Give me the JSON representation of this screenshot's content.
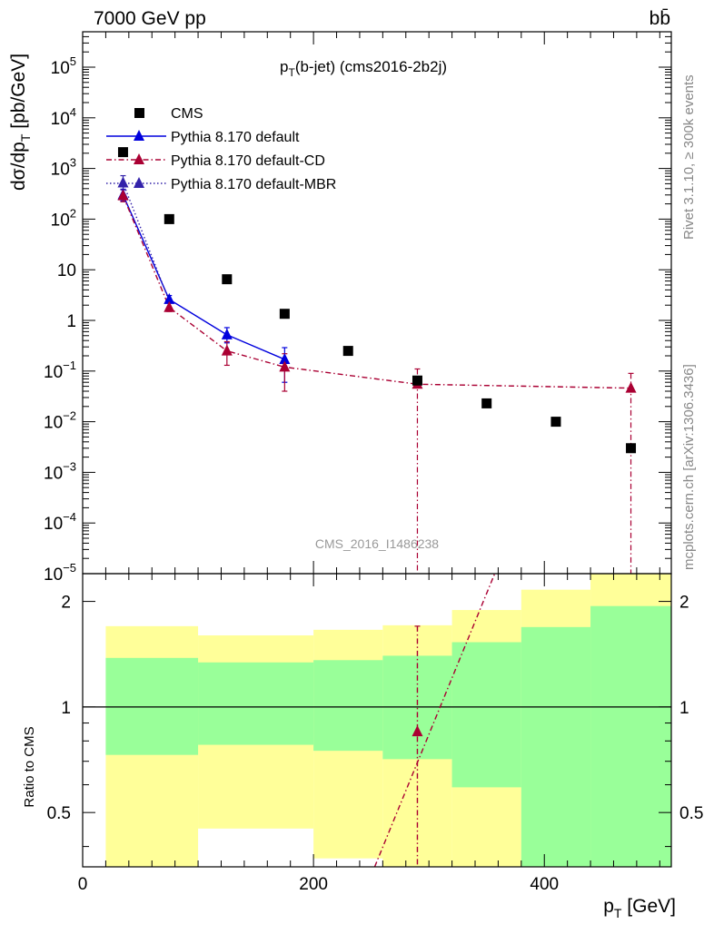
{
  "header": {
    "energy_label": "7000 GeV pp",
    "process_label": "bb̄",
    "plot_title_main": "p",
    "plot_title_sub": "T",
    "plot_title_rest": "(b-jet) (cms2016-2b2j)",
    "side_text_top": "Rivet 3.1.10, ≥ 300k events",
    "side_text_bottom": "mcplots.cern.ch [arXiv:1306.3436]",
    "watermark": "CMS_2016_I1486238"
  },
  "axes": {
    "ylabel_main_a": "dσ/dp",
    "ylabel_main_sub": "T",
    "ylabel_main_b": " [pb/GeV]",
    "ylabel_ratio": "Ratio to CMS",
    "xlabel_a": "p",
    "xlabel_sub": "T",
    "xlabel_b": " [GeV]"
  },
  "chart_data": [
    {
      "type": "scatter",
      "panel": "main",
      "log_y": true,
      "xlim": [
        0,
        510
      ],
      "ylim": [
        1e-05,
        500000.0
      ],
      "x_ticks": [
        0,
        200,
        400
      ],
      "y_ticks": [
        {
          "v": 1e-05,
          "base": "10",
          "exp": "−5"
        },
        {
          "v": 0.0001,
          "base": "10",
          "exp": "−4"
        },
        {
          "v": 0.001,
          "base": "10",
          "exp": "−3"
        },
        {
          "v": 0.01,
          "base": "10",
          "exp": "−2"
        },
        {
          "v": 0.1,
          "base": "10",
          "exp": "−1"
        },
        {
          "v": 1,
          "base": "1",
          "exp": ""
        },
        {
          "v": 10,
          "base": "10",
          "exp": ""
        },
        {
          "v": 100,
          "base": "10",
          "exp": "2"
        },
        {
          "v": 1000,
          "base": "10",
          "exp": "3"
        },
        {
          "v": 10000,
          "base": "10",
          "exp": "4"
        },
        {
          "v": 100000,
          "base": "10",
          "exp": "5"
        }
      ],
      "legend_position": "top-left",
      "series": [
        {
          "name": "CMS",
          "style": "square",
          "color": "#000000",
          "points": [
            {
              "x": 35,
              "y": 2100
            },
            {
              "x": 75,
              "y": 100
            },
            {
              "x": 125,
              "y": 6.5
            },
            {
              "x": 175,
              "y": 1.35
            },
            {
              "x": 230,
              "y": 0.25
            },
            {
              "x": 290,
              "y": 0.065
            },
            {
              "x": 350,
              "y": 0.023
            },
            {
              "x": 410,
              "y": 0.01
            },
            {
              "x": 475,
              "y": 0.003
            }
          ]
        },
        {
          "name": "Pythia 8.170 default",
          "style": "solid",
          "color": "#0000dd",
          "points": [
            {
              "x": 35,
              "y": 300,
              "lo": 230,
              "hi": 390
            },
            {
              "x": 75,
              "y": 2.6,
              "lo": 2.2,
              "hi": 3.1
            },
            {
              "x": 125,
              "y": 0.52,
              "lo": 0.36,
              "hi": 0.72
            },
            {
              "x": 175,
              "y": 0.17,
              "lo": 0.06,
              "hi": 0.29
            }
          ]
        },
        {
          "name": "Pythia 8.170 default-CD",
          "style": "dashdot",
          "color": "#aa0033",
          "points": [
            {
              "x": 35,
              "y": 290,
              "lo": 220,
              "hi": 380
            },
            {
              "x": 75,
              "y": 1.8,
              "lo": 1.5,
              "hi": 2.2
            },
            {
              "x": 125,
              "y": 0.25,
              "lo": 0.13,
              "hi": 0.38
            },
            {
              "x": 175,
              "y": 0.12,
              "lo": 0.04,
              "hi": 0.22
            },
            {
              "x": 290,
              "y": 0.055,
              "lo": 1e-06,
              "hi": 0.11
            },
            {
              "x": 475,
              "y": 0.046,
              "lo": 1e-06,
              "hi": 0.09
            }
          ]
        },
        {
          "name": "Pythia 8.170 default-MBR",
          "style": "dotted",
          "color": "#3322aa",
          "points": [
            {
              "x": 35,
              "y": 520,
              "lo": 380,
              "hi": 720
            }
          ]
        }
      ]
    },
    {
      "type": "area",
      "panel": "ratio",
      "log_y": true,
      "xlim": [
        0,
        510
      ],
      "ylim": [
        0.35,
        2.4
      ],
      "x_ticks": [
        0,
        200,
        400
      ],
      "y_ticks": [
        {
          "v": 0.5,
          "label": "0.5"
        },
        {
          "v": 1,
          "label": "1"
        },
        {
          "v": 2,
          "label": "2"
        }
      ],
      "bands": [
        {
          "x0": 20,
          "x1": 100,
          "yellow": [
            0.35,
            1.7
          ],
          "green": [
            0.73,
            1.38
          ]
        },
        {
          "x0": 100,
          "x1": 200,
          "yellow": [
            0.45,
            1.6
          ],
          "green": [
            0.78,
            1.34
          ]
        },
        {
          "x0": 200,
          "x1": 260,
          "yellow": [
            0.37,
            1.66
          ],
          "green": [
            0.75,
            1.36
          ]
        },
        {
          "x0": 260,
          "x1": 320,
          "yellow": [
            0.35,
            1.71
          ],
          "green": [
            0.71,
            1.4
          ]
        },
        {
          "x0": 320,
          "x1": 380,
          "yellow": [
            0.35,
            1.89
          ],
          "green": [
            0.59,
            1.53
          ]
        },
        {
          "x0": 380,
          "x1": 440,
          "yellow": [
            0.35,
            2.16
          ],
          "green": [
            0.35,
            1.69
          ]
        },
        {
          "x0": 440,
          "x1": 510,
          "yellow": [
            0.35,
            2.4
          ],
          "green": [
            0.35,
            1.94
          ]
        }
      ],
      "ratio_series": [
        {
          "name": "Pythia 8.170 default-CD",
          "color": "#aa0033",
          "x": 290,
          "y": 0.85,
          "lo": 0.35,
          "hi": 1.7
        }
      ]
    }
  ]
}
